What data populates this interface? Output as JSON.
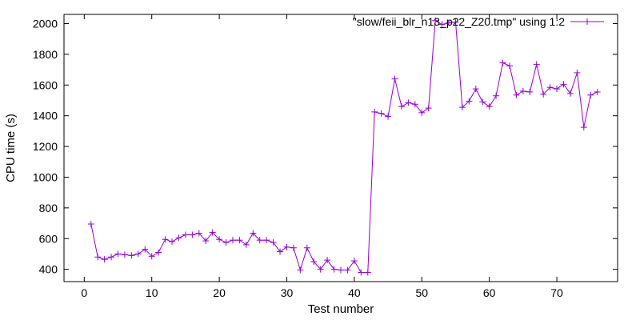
{
  "chart_data": {
    "type": "line",
    "title": "",
    "xlabel": "Test number",
    "ylabel": "CPU time (s)",
    "xlim": [
      -3,
      79
    ],
    "ylim": [
      320,
      2060
    ],
    "xticks": [
      0,
      10,
      20,
      30,
      40,
      50,
      60,
      70
    ],
    "yticks": [
      400,
      600,
      800,
      1000,
      1200,
      1400,
      1600,
      1800,
      2000
    ],
    "grid": false,
    "legend_position": "top-right",
    "marker": "plus",
    "series": [
      {
        "name": "\"slow/feii_blr_n13_p22_Z20.tmp\" using 1:2",
        "color": "#9400d3",
        "x": [
          1,
          2,
          3,
          4,
          5,
          6,
          7,
          8,
          9,
          10,
          11,
          12,
          13,
          14,
          15,
          16,
          17,
          18,
          19,
          20,
          21,
          22,
          23,
          24,
          25,
          26,
          27,
          28,
          29,
          30,
          31,
          32,
          33,
          34,
          35,
          36,
          37,
          38,
          39,
          40,
          41,
          42,
          43,
          44,
          45,
          46,
          47,
          48,
          49,
          50,
          51,
          52,
          53,
          54,
          55,
          56,
          57,
          58,
          59,
          60,
          61,
          62,
          63,
          64,
          65,
          66,
          67,
          68,
          69,
          70,
          71,
          72,
          73,
          74,
          75,
          76
        ],
        "y": [
          695,
          480,
          465,
          480,
          500,
          495,
          490,
          500,
          530,
          485,
          510,
          595,
          580,
          605,
          625,
          625,
          635,
          585,
          640,
          595,
          575,
          590,
          590,
          560,
          635,
          590,
          590,
          575,
          515,
          545,
          540,
          395,
          540,
          450,
          400,
          460,
          400,
          395,
          395,
          455,
          380,
          380,
          1425,
          1415,
          1395,
          1640,
          1460,
          1485,
          1475,
          1420,
          1450,
          2020,
          1995,
          2005,
          2010,
          1455,
          1495,
          1575,
          1490,
          1460,
          1530,
          1745,
          1725,
          1535,
          1560,
          1555,
          1735,
          1540,
          1585,
          1575,
          1605,
          1545,
          1680,
          1325,
          1535,
          1555
        ]
      }
    ]
  }
}
